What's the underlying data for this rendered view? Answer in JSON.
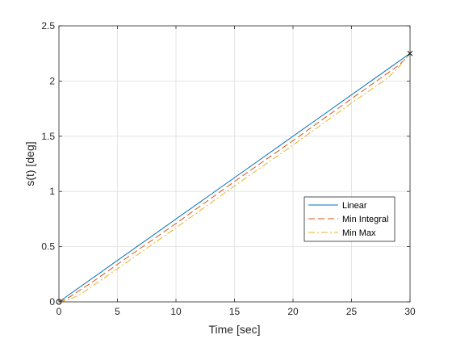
{
  "chart_data": {
    "type": "line",
    "xlabel": "Time [sec]",
    "ylabel": "s(t) [deg]",
    "xlim": [
      0,
      30
    ],
    "ylim": [
      0,
      2.5
    ],
    "xticks": [
      0,
      5,
      10,
      15,
      20,
      25,
      30
    ],
    "yticks": [
      0,
      0.5,
      1,
      1.5,
      2,
      2.5
    ],
    "xtick_labels": [
      "0",
      "5",
      "10",
      "15",
      "20",
      "25",
      "30"
    ],
    "ytick_labels": [
      "0",
      "0.5",
      "1",
      "1.5",
      "2",
      "2.5"
    ],
    "grid": true,
    "legend_position": "lower-right",
    "series": [
      {
        "name": "Linear",
        "style": "solid",
        "color": "#0072BD",
        "x": [
          0,
          30
        ],
        "y": [
          0,
          2.25
        ]
      },
      {
        "name": "Min Integral",
        "style": "dashed",
        "color": "#D95319",
        "x": [
          0,
          0.5,
          1,
          3,
          5,
          10,
          15,
          20,
          25,
          29,
          29.5,
          30
        ],
        "y": [
          0,
          0.02,
          0.05,
          0.19,
          0.34,
          0.71,
          1.09,
          1.46,
          1.84,
          2.14,
          2.19,
          2.25
        ]
      },
      {
        "name": "Min Max",
        "style": "dashdot",
        "color": "#EDB120",
        "x": [
          0,
          0.5,
          1,
          2,
          5,
          10,
          15,
          20,
          25,
          28,
          29,
          29.5,
          30
        ],
        "y": [
          0,
          0.01,
          0.025,
          0.08,
          0.3,
          0.67,
          1.05,
          1.42,
          1.8,
          2.02,
          2.12,
          2.19,
          2.25
        ]
      }
    ],
    "markers": [
      {
        "symbol": "o",
        "x": 0,
        "y": 0
      },
      {
        "symbol": "x",
        "x": 30,
        "y": 2.25
      }
    ]
  }
}
